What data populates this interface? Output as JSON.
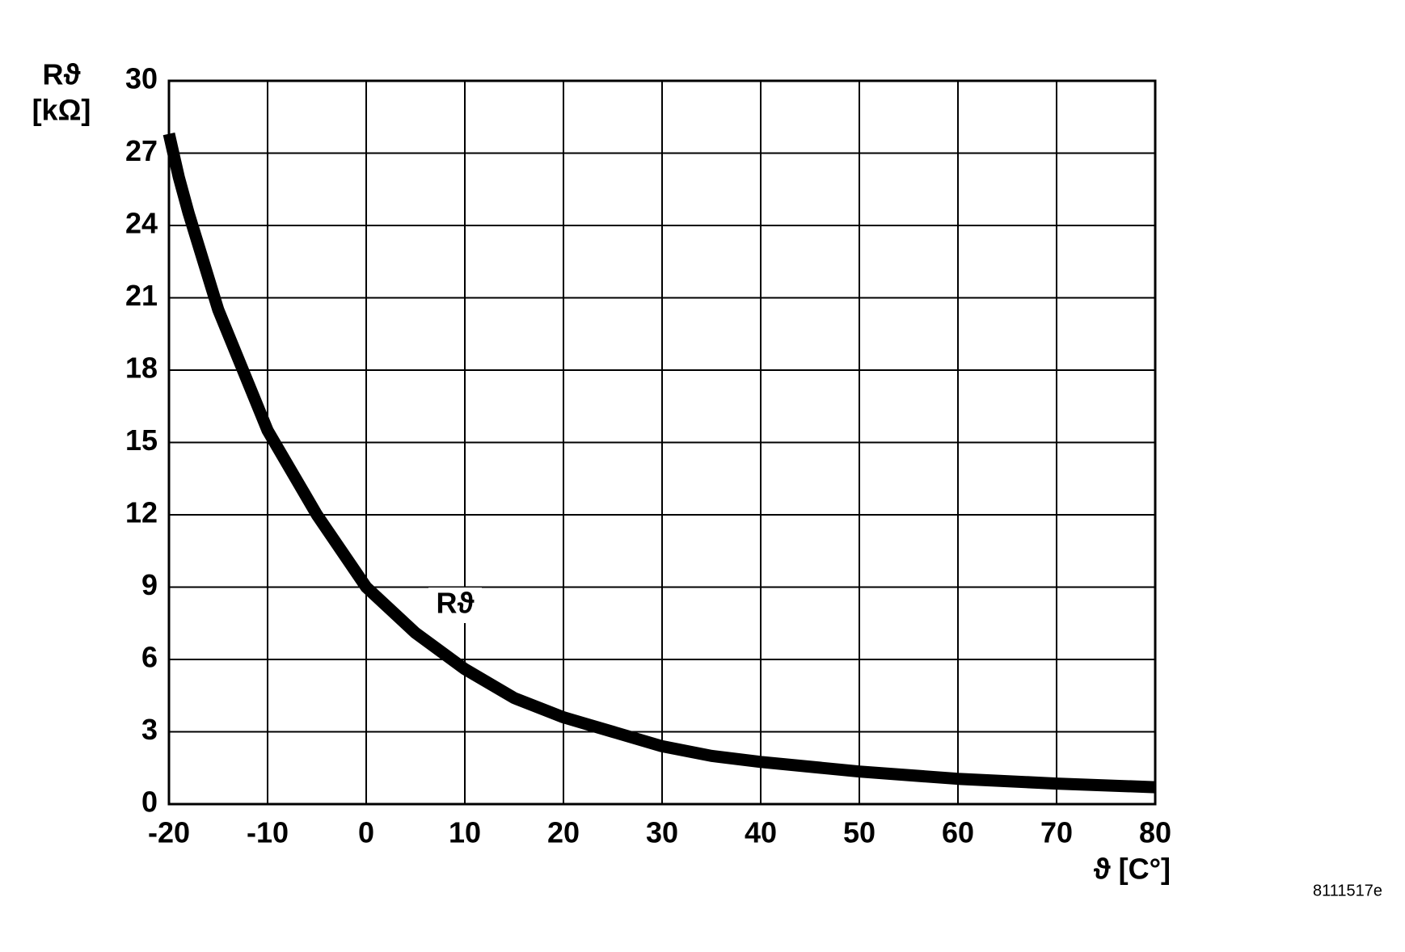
{
  "chart_data": {
    "type": "line",
    "ylabel": {
      "symbol": "Rϑ",
      "unit": "[kΩ]"
    },
    "xlabel": "ϑ [C°]",
    "x": [
      -20,
      -19,
      -18,
      -15,
      -10,
      -5,
      0,
      5,
      10,
      15,
      20,
      25,
      30,
      35,
      40,
      50,
      60,
      70,
      80
    ],
    "series": [
      {
        "name": "Rϑ",
        "color": "#000000",
        "values": [
          27.8,
          26,
          24.5,
          20.5,
          15.5,
          12,
          9,
          7.1,
          5.6,
          4.4,
          3.6,
          3.0,
          2.4,
          2.0,
          1.75,
          1.35,
          1.05,
          0.85,
          0.7
        ]
      }
    ],
    "xlim": [
      -20,
      80
    ],
    "xticks": [
      -20,
      -10,
      0,
      10,
      20,
      30,
      40,
      50,
      60,
      70,
      80
    ],
    "ylim": [
      0,
      30
    ],
    "yticks": [
      0,
      3,
      6,
      9,
      12,
      15,
      18,
      21,
      24,
      27,
      30
    ],
    "grid": true
  },
  "figure_code": "8111517e"
}
